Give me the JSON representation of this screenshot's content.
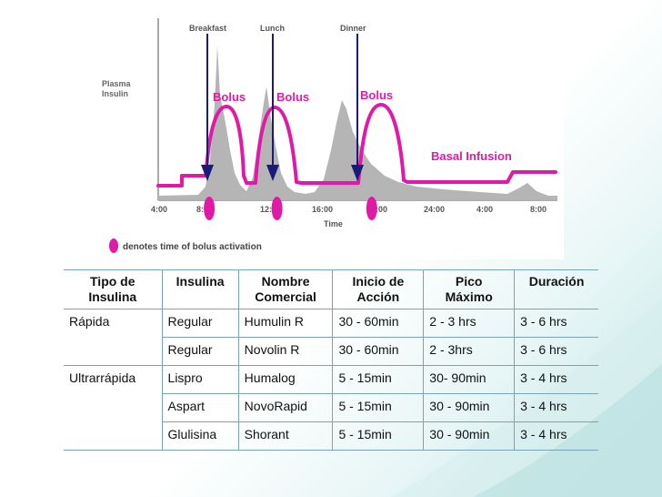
{
  "chart_data": {
    "type": "line",
    "title": "",
    "xlabel": "Time",
    "ylabel": "Plasma Insulin",
    "x_ticks": [
      "4:00",
      "8:00",
      "12:00",
      "16:00",
      "20:00",
      "24:00",
      "4:00",
      "8:00"
    ],
    "meals": [
      "Breakfast",
      "Lunch",
      "Dinner"
    ],
    "meal_times_h": [
      7.5,
      12.5,
      19.5
    ],
    "bolus_label": "Bolus",
    "basal_label": "Basal Infusion",
    "legend": "denotes time of bolus activation",
    "series": [
      {
        "name": "Bolus",
        "x": [
          7.5,
          12.5,
          19.5
        ],
        "values": [
          1,
          1,
          1
        ]
      },
      {
        "name": "Basal Infusion",
        "values": []
      }
    ],
    "colors": {
      "pump": "#e01aa6",
      "physiologic": "#b5b5b5",
      "arrow": "#1a1a7a"
    }
  },
  "table": {
    "headers": [
      [
        "Tipo de",
        "Insulina"
      ],
      [
        "Insulina"
      ],
      [
        "Nombre",
        "Comercial"
      ],
      [
        "Inicio de",
        "Acción"
      ],
      [
        "Pico",
        "Máximo"
      ],
      [
        "Duración"
      ]
    ],
    "rows": [
      [
        "Rápida",
        "Regular",
        "Humulin R",
        "30 - 60min",
        "2 - 3 hrs",
        "3 - 6 hrs"
      ],
      [
        "",
        "Regular",
        "Novolin R",
        "30 - 60min",
        "2 - 3hrs",
        "3 - 6 hrs"
      ],
      [
        "Ultrarrápida",
        "Lispro",
        "Humalog",
        "5 - 15min",
        "30- 90min",
        "3 - 4 hrs"
      ],
      [
        "",
        "Aspart",
        "NovoRapid",
        "5 - 15min",
        "30 - 90min",
        "3 - 4 hrs"
      ],
      [
        "",
        "Glulisina",
        "Shorant",
        "5 - 15min",
        "30 - 90min",
        "3 - 4 hrs"
      ]
    ]
  }
}
